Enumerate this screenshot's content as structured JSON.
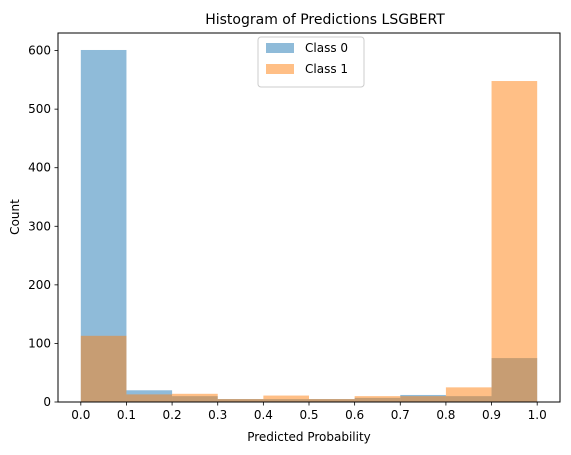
{
  "chart_data": {
    "type": "histogram",
    "title": "Histogram of Predictions LSGBERT",
    "xlabel": "Predicted Probability",
    "ylabel": "Count",
    "xlim": [
      -0.05,
      1.05
    ],
    "ylim": [
      0,
      630
    ],
    "x_ticks": [
      "0.0",
      "0.1",
      "0.2",
      "0.3",
      "0.4",
      "0.5",
      "0.6",
      "0.7",
      "0.8",
      "0.9",
      "1.0"
    ],
    "y_ticks": [
      "0",
      "100",
      "200",
      "300",
      "400",
      "500",
      "600"
    ],
    "bins": [
      0.0,
      0.1,
      0.2,
      0.3,
      0.4,
      0.5,
      0.6,
      0.7,
      0.8,
      0.9,
      1.0
    ],
    "legend_position": "top-center",
    "series": [
      {
        "name": "Class 0",
        "color": "#1f77b4",
        "alpha": 0.5,
        "values": [
          601,
          20,
          10,
          5,
          5,
          5,
          7,
          12,
          10,
          75
        ]
      },
      {
        "name": "Class 1",
        "color": "#ff7f0e",
        "alpha": 0.5,
        "values": [
          113,
          13,
          14,
          5,
          11,
          5,
          10,
          10,
          25,
          548
        ]
      }
    ]
  }
}
